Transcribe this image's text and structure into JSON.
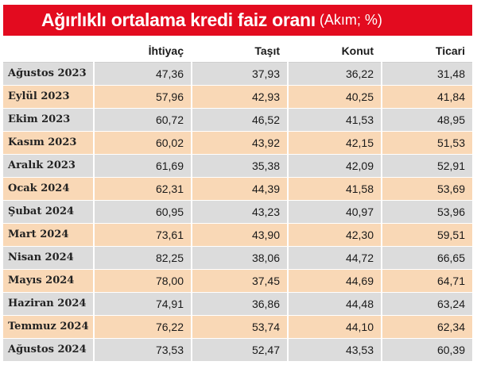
{
  "header": {
    "title": "Ağırlıklı ortalama kredi faiz oranı",
    "subtitle": "(Akım; %)"
  },
  "colors": {
    "title_bar": "#e30b1f",
    "row_gray": "#dcdcdc",
    "row_peach": "#f9d8b6"
  },
  "chart_data": {
    "type": "table",
    "title": "Ağırlıklı ortalama kredi faiz oranı",
    "subtitle": "(Akım; %)",
    "columns": [
      "",
      "İhtiyaç",
      "Taşıt",
      "Konut",
      "Ticari"
    ],
    "categories": [
      "Ağustos 2023",
      "Eylül 2023",
      "Ekim 2023",
      "Kasım 2023",
      "Aralık 2023",
      "Ocak 2024",
      "Şubat 2024",
      "Mart 2024",
      "Nisan 2024",
      "Mayıs 2024",
      "Haziran 2024",
      "Temmuz 2024",
      "Ağustos 2024"
    ],
    "rows": [
      [
        "Ağustos 2023",
        "47,36",
        "37,93",
        "36,22",
        "31,48"
      ],
      [
        "Eylül 2023",
        "57,96",
        "42,93",
        "40,25",
        "41,84"
      ],
      [
        "Ekim 2023",
        "60,72",
        "46,52",
        "41,53",
        "48,95"
      ],
      [
        "Kasım 2023",
        "60,02",
        "43,92",
        "42,15",
        "51,53"
      ],
      [
        "Aralık 2023",
        "61,69",
        "35,38",
        "42,09",
        "52,91"
      ],
      [
        "Ocak 2024",
        "62,31",
        "44,39",
        "41,58",
        "53,69"
      ],
      [
        "Şubat 2024",
        "60,95",
        "43,23",
        "40,97",
        "53,96"
      ],
      [
        "Mart 2024",
        "73,61",
        "43,90",
        "42,30",
        "59,51"
      ],
      [
        "Nisan 2024",
        "82,25",
        "38,06",
        "44,72",
        "66,65"
      ],
      [
        "Mayıs 2024",
        "78,00",
        "37,45",
        "44,69",
        "64,71"
      ],
      [
        "Haziran 2024",
        "74,91",
        "36,86",
        "44,48",
        "63,24"
      ],
      [
        "Temmuz 2024",
        "76,22",
        "53,74",
        "44,10",
        "62,34"
      ],
      [
        "Ağustos 2024",
        "73,53",
        "52,47",
        "43,53",
        "60,39"
      ]
    ],
    "series": [
      {
        "name": "İhtiyaç",
        "values": [
          47.36,
          57.96,
          60.72,
          60.02,
          61.69,
          62.31,
          60.95,
          73.61,
          82.25,
          78.0,
          74.91,
          76.22,
          73.53
        ]
      },
      {
        "name": "Taşıt",
        "values": [
          37.93,
          42.93,
          46.52,
          43.92,
          35.38,
          44.39,
          43.23,
          43.9,
          38.06,
          37.45,
          36.86,
          53.74,
          52.47
        ]
      },
      {
        "name": "Konut",
        "values": [
          36.22,
          40.25,
          41.53,
          42.15,
          42.09,
          41.58,
          40.97,
          42.3,
          44.72,
          44.69,
          44.48,
          44.1,
          43.53
        ]
      },
      {
        "name": "Ticari",
        "values": [
          31.48,
          41.84,
          48.95,
          51.53,
          52.91,
          53.69,
          53.96,
          59.51,
          66.65,
          64.71,
          63.24,
          62.34,
          60.39
        ]
      }
    ]
  }
}
